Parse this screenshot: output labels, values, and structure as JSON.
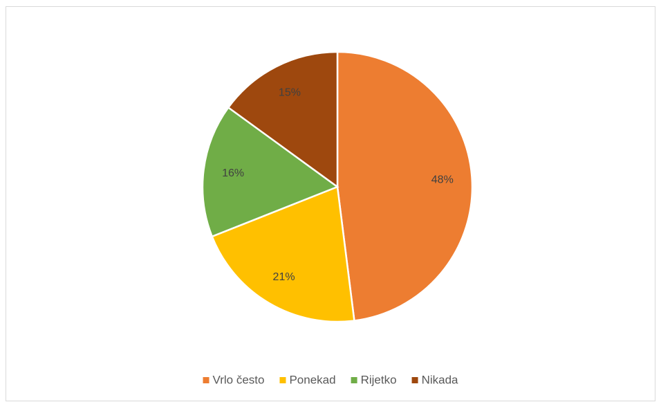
{
  "chart_data": {
    "type": "pie",
    "categories": [
      "Vrlo često",
      "Ponekad",
      "Rijetko",
      "Nikada"
    ],
    "values": [
      48,
      21,
      16,
      15
    ],
    "value_labels": [
      "48%",
      "21%",
      "16%",
      "15%"
    ],
    "colors": [
      "#ed7d31",
      "#ffc000",
      "#70ad47",
      "#9e480e"
    ],
    "legend": "bottom"
  }
}
